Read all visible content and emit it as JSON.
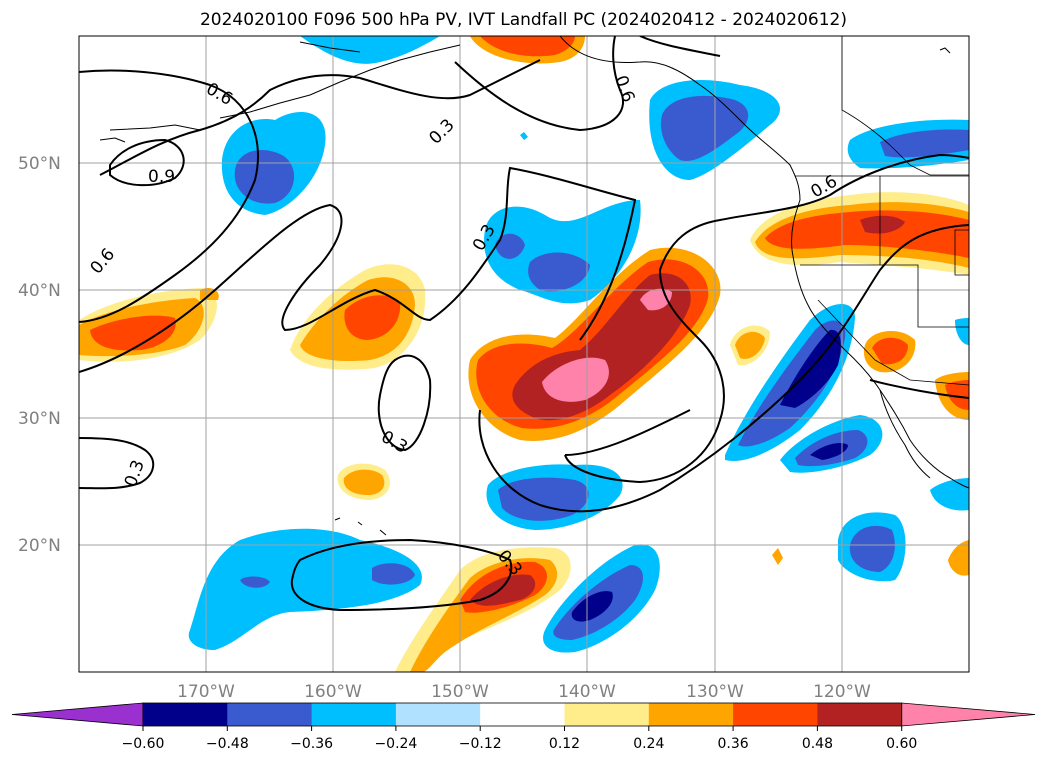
{
  "title": "2024020100 F096 500 hPa PV, IVT Landfall PC (2024020412 - 2024020612)",
  "lat_labels": [
    "50°N",
    "40°N",
    "30°N",
    "20°N"
  ],
  "lon_labels": [
    "170°W",
    "160°W",
    "150°W",
    "140°W",
    "130°W",
    "120°W"
  ],
  "contour_labels": [
    "0.6",
    "0.9",
    "0.6",
    "0.3",
    "0.6",
    "0.3",
    "0.6",
    "0.3",
    "0.3",
    "0.3"
  ],
  "colorbar": {
    "ticks": [
      "−0.60",
      "−0.48",
      "−0.36",
      "−0.24",
      "−0.12",
      "0.12",
      "0.24",
      "0.36",
      "0.48",
      "0.60"
    ],
    "colors": [
      "#9b30d0",
      "#00008b",
      "#3a5bd0",
      "#00bfff",
      "#b0e2ff",
      "#ffffff",
      "#ffec8b",
      "#ffa500",
      "#ff4500",
      "#b22222",
      "#ff82ab"
    ]
  }
}
